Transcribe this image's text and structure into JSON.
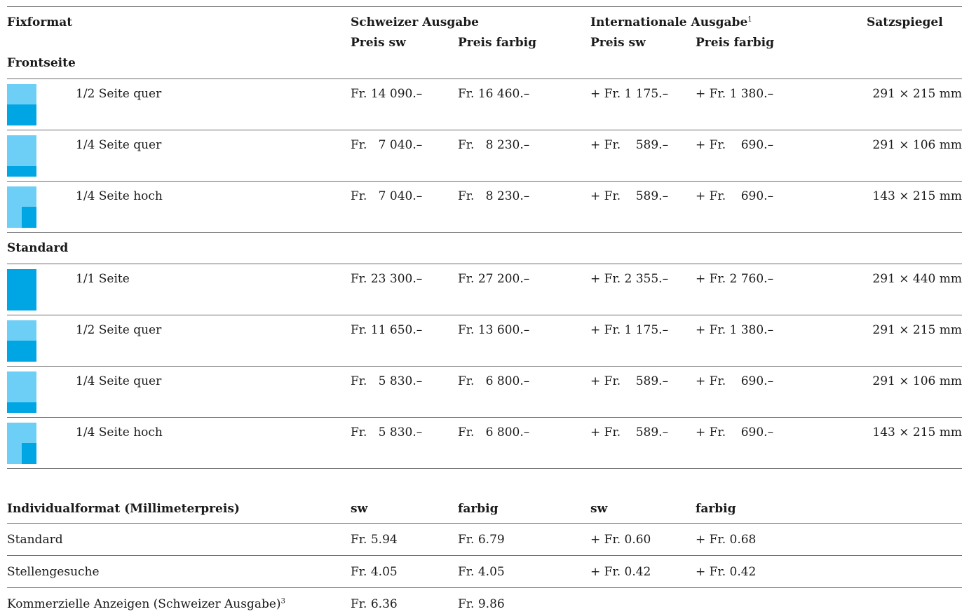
{
  "header": {
    "fixformat": "Fixformat",
    "schweizer": "Schweizer Ausgabe",
    "international": "Internationale Ausgabe",
    "international_sup": "1",
    "satzspiegel": "Satzspiegel",
    "preis_sw": "Preis sw",
    "preis_farbig": "Preis farbig"
  },
  "sections": [
    {
      "title": "Frontseite",
      "rows": [
        {
          "format": "1/2 Seite quer",
          "ch_sw": "Fr. 14 090.–",
          "ch_farbig": "Fr. 16 460.–",
          "int_sw": "+ Fr. 1 175.–",
          "int_farbig": "+ Fr. 1 380.–",
          "satzspiegel": "291 × 215 mm",
          "thumb": "half-horizontal"
        },
        {
          "format": "1/4 Seite quer",
          "ch_sw": "Fr.   7 040.–",
          "ch_farbig": "Fr.   8 230.–",
          "int_sw": "+ Fr.    589.–",
          "int_farbig": "+ Fr.    690.–",
          "satzspiegel": "291 × 106 mm",
          "thumb": "quarter-horizontal"
        },
        {
          "format": "1/4 Seite hoch",
          "ch_sw": "Fr.   7 040.–",
          "ch_farbig": "Fr.   8 230.–",
          "int_sw": "+ Fr.    589.–",
          "int_farbig": "+ Fr.    690.–",
          "satzspiegel": "143 × 215 mm",
          "thumb": "quarter-vertical"
        }
      ]
    },
    {
      "title": "Standard",
      "rows": [
        {
          "format": "1/1 Seite",
          "ch_sw": "Fr. 23 300.–",
          "ch_farbig": "Fr. 27 200.–",
          "int_sw": "+ Fr. 2 355.–",
          "int_farbig": "+ Fr. 2 760.–",
          "satzspiegel": "291 × 440 mm",
          "thumb": "full"
        },
        {
          "format": "1/2 Seite quer",
          "ch_sw": "Fr. 11 650.–",
          "ch_farbig": "Fr. 13 600.–",
          "int_sw": "+ Fr. 1 175.–",
          "int_farbig": "+ Fr. 1 380.–",
          "satzspiegel": "291 × 215 mm",
          "thumb": "half-horizontal"
        },
        {
          "format": "1/4 Seite quer",
          "ch_sw": "Fr.   5 830.–",
          "ch_farbig": "Fr.   6 800.–",
          "int_sw": "+ Fr.    589.–",
          "int_farbig": "+ Fr.    690.–",
          "satzspiegel": "291 × 106 mm",
          "thumb": "quarter-horizontal"
        },
        {
          "format": "1/4 Seite hoch",
          "ch_sw": "Fr.   5 830.–",
          "ch_farbig": "Fr.   6 800.–",
          "int_sw": "+ Fr.    589.–",
          "int_farbig": "+ Fr.    690.–",
          "satzspiegel": "143 × 215 mm",
          "thumb": "quarter-vertical"
        }
      ]
    }
  ],
  "individual": {
    "title": "Individualformat (Millimeterpreis)",
    "sw": "sw",
    "farbig": "farbig",
    "rows": [
      {
        "label": "Standard",
        "sup": "",
        "ch_sw": "Fr. 5.94",
        "ch_farbig": "Fr. 6.79",
        "int_sw": "+ Fr. 0.60",
        "int_farbig": "+ Fr. 0.68"
      },
      {
        "label": "Stellengesuche",
        "sup": "",
        "ch_sw": "Fr. 4.05",
        "ch_farbig": "Fr. 4.05",
        "int_sw": "+ Fr. 0.42",
        "int_farbig": "+ Fr. 0.42"
      },
      {
        "label": "Kommerzielle Anzeigen (Schweizer Ausgabe)",
        "sup": "3",
        "ch_sw": "Fr. 6.36",
        "ch_farbig": "Fr. 9.86",
        "int_sw": "",
        "int_farbig": ""
      }
    ]
  },
  "colors": {
    "light_blue": "#6dcff6",
    "blue": "#00a6e3",
    "rule": "#6e6e6e"
  }
}
